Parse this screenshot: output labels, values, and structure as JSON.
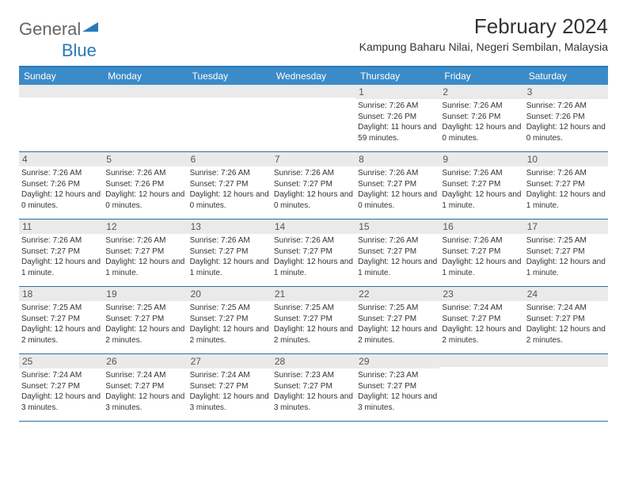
{
  "brand": {
    "part1": "General",
    "part2": "Blue"
  },
  "title": "February 2024",
  "location": "Kampung Baharu Nilai, Negeri Sembilan, Malaysia",
  "colors": {
    "header_bg": "#3b8bc8",
    "header_text": "#ffffff",
    "rule": "#2a6fa3",
    "daynum_bg": "#eaeaea",
    "text": "#333333",
    "brand_blue": "#2a7ab8",
    "background": "#ffffff"
  },
  "day_headers": [
    "Sunday",
    "Monday",
    "Tuesday",
    "Wednesday",
    "Thursday",
    "Friday",
    "Saturday"
  ],
  "weeks": [
    [
      {
        "n": "",
        "sr": "",
        "ss": "",
        "dl": ""
      },
      {
        "n": "",
        "sr": "",
        "ss": "",
        "dl": ""
      },
      {
        "n": "",
        "sr": "",
        "ss": "",
        "dl": ""
      },
      {
        "n": "",
        "sr": "",
        "ss": "",
        "dl": ""
      },
      {
        "n": "1",
        "sr": "Sunrise: 7:26 AM",
        "ss": "Sunset: 7:26 PM",
        "dl": "Daylight: 11 hours and 59 minutes."
      },
      {
        "n": "2",
        "sr": "Sunrise: 7:26 AM",
        "ss": "Sunset: 7:26 PM",
        "dl": "Daylight: 12 hours and 0 minutes."
      },
      {
        "n": "3",
        "sr": "Sunrise: 7:26 AM",
        "ss": "Sunset: 7:26 PM",
        "dl": "Daylight: 12 hours and 0 minutes."
      }
    ],
    [
      {
        "n": "4",
        "sr": "Sunrise: 7:26 AM",
        "ss": "Sunset: 7:26 PM",
        "dl": "Daylight: 12 hours and 0 minutes."
      },
      {
        "n": "5",
        "sr": "Sunrise: 7:26 AM",
        "ss": "Sunset: 7:26 PM",
        "dl": "Daylight: 12 hours and 0 minutes."
      },
      {
        "n": "6",
        "sr": "Sunrise: 7:26 AM",
        "ss": "Sunset: 7:27 PM",
        "dl": "Daylight: 12 hours and 0 minutes."
      },
      {
        "n": "7",
        "sr": "Sunrise: 7:26 AM",
        "ss": "Sunset: 7:27 PM",
        "dl": "Daylight: 12 hours and 0 minutes."
      },
      {
        "n": "8",
        "sr": "Sunrise: 7:26 AM",
        "ss": "Sunset: 7:27 PM",
        "dl": "Daylight: 12 hours and 0 minutes."
      },
      {
        "n": "9",
        "sr": "Sunrise: 7:26 AM",
        "ss": "Sunset: 7:27 PM",
        "dl": "Daylight: 12 hours and 1 minute."
      },
      {
        "n": "10",
        "sr": "Sunrise: 7:26 AM",
        "ss": "Sunset: 7:27 PM",
        "dl": "Daylight: 12 hours and 1 minute."
      }
    ],
    [
      {
        "n": "11",
        "sr": "Sunrise: 7:26 AM",
        "ss": "Sunset: 7:27 PM",
        "dl": "Daylight: 12 hours and 1 minute."
      },
      {
        "n": "12",
        "sr": "Sunrise: 7:26 AM",
        "ss": "Sunset: 7:27 PM",
        "dl": "Daylight: 12 hours and 1 minute."
      },
      {
        "n": "13",
        "sr": "Sunrise: 7:26 AM",
        "ss": "Sunset: 7:27 PM",
        "dl": "Daylight: 12 hours and 1 minute."
      },
      {
        "n": "14",
        "sr": "Sunrise: 7:26 AM",
        "ss": "Sunset: 7:27 PM",
        "dl": "Daylight: 12 hours and 1 minute."
      },
      {
        "n": "15",
        "sr": "Sunrise: 7:26 AM",
        "ss": "Sunset: 7:27 PM",
        "dl": "Daylight: 12 hours and 1 minute."
      },
      {
        "n": "16",
        "sr": "Sunrise: 7:26 AM",
        "ss": "Sunset: 7:27 PM",
        "dl": "Daylight: 12 hours and 1 minute."
      },
      {
        "n": "17",
        "sr": "Sunrise: 7:25 AM",
        "ss": "Sunset: 7:27 PM",
        "dl": "Daylight: 12 hours and 1 minute."
      }
    ],
    [
      {
        "n": "18",
        "sr": "Sunrise: 7:25 AM",
        "ss": "Sunset: 7:27 PM",
        "dl": "Daylight: 12 hours and 2 minutes."
      },
      {
        "n": "19",
        "sr": "Sunrise: 7:25 AM",
        "ss": "Sunset: 7:27 PM",
        "dl": "Daylight: 12 hours and 2 minutes."
      },
      {
        "n": "20",
        "sr": "Sunrise: 7:25 AM",
        "ss": "Sunset: 7:27 PM",
        "dl": "Daylight: 12 hours and 2 minutes."
      },
      {
        "n": "21",
        "sr": "Sunrise: 7:25 AM",
        "ss": "Sunset: 7:27 PM",
        "dl": "Daylight: 12 hours and 2 minutes."
      },
      {
        "n": "22",
        "sr": "Sunrise: 7:25 AM",
        "ss": "Sunset: 7:27 PM",
        "dl": "Daylight: 12 hours and 2 minutes."
      },
      {
        "n": "23",
        "sr": "Sunrise: 7:24 AM",
        "ss": "Sunset: 7:27 PM",
        "dl": "Daylight: 12 hours and 2 minutes."
      },
      {
        "n": "24",
        "sr": "Sunrise: 7:24 AM",
        "ss": "Sunset: 7:27 PM",
        "dl": "Daylight: 12 hours and 2 minutes."
      }
    ],
    [
      {
        "n": "25",
        "sr": "Sunrise: 7:24 AM",
        "ss": "Sunset: 7:27 PM",
        "dl": "Daylight: 12 hours and 3 minutes."
      },
      {
        "n": "26",
        "sr": "Sunrise: 7:24 AM",
        "ss": "Sunset: 7:27 PM",
        "dl": "Daylight: 12 hours and 3 minutes."
      },
      {
        "n": "27",
        "sr": "Sunrise: 7:24 AM",
        "ss": "Sunset: 7:27 PM",
        "dl": "Daylight: 12 hours and 3 minutes."
      },
      {
        "n": "28",
        "sr": "Sunrise: 7:23 AM",
        "ss": "Sunset: 7:27 PM",
        "dl": "Daylight: 12 hours and 3 minutes."
      },
      {
        "n": "29",
        "sr": "Sunrise: 7:23 AM",
        "ss": "Sunset: 7:27 PM",
        "dl": "Daylight: 12 hours and 3 minutes."
      },
      {
        "n": "",
        "sr": "",
        "ss": "",
        "dl": ""
      },
      {
        "n": "",
        "sr": "",
        "ss": "",
        "dl": ""
      }
    ]
  ]
}
